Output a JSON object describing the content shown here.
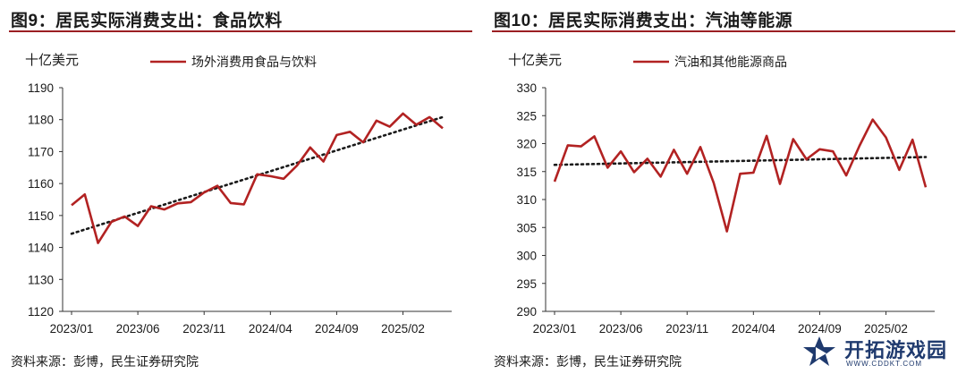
{
  "charts": [
    {
      "fig_title": "图9：居民实际消费支出：食品饮料",
      "source": "资料来源：彭博，民生证券研究院",
      "chart_data": {
        "type": "line",
        "unit_label": "十亿美元",
        "legend": "场外消费用食品与饮料",
        "ylim": [
          1120,
          1190
        ],
        "yticks": [
          "1120",
          "1130",
          "1140",
          "1150",
          "1160",
          "1170",
          "1180",
          "1190"
        ],
        "xticks": [
          "2023/01",
          "2023/06",
          "2023/11",
          "2024/04",
          "2024/09",
          "2025/02"
        ],
        "series": [
          {
            "name": "场外消费用食品与饮料",
            "color": "#b22222",
            "values": [
              1153.2,
              1156.6,
              1141.4,
              1148.0,
              1149.7,
              1146.7,
              1152.9,
              1151.9,
              1153.8,
              1154.2,
              1157.2,
              1159.3,
              1153.9,
              1153.5,
              1162.9,
              1162.3,
              1161.5,
              1165.6,
              1171.3,
              1166.9,
              1175.2,
              1176.2,
              1172.9,
              1179.7,
              1177.8,
              1181.9,
              1178.4,
              1180.8,
              1177.3
            ]
          }
        ],
        "trend": {
          "style": "dotted",
          "color": "#1a1a1a",
          "start": 1144.3,
          "end": 1180.8
        }
      }
    },
    {
      "fig_title": "图10：居民实际消费支出：汽油等能源",
      "source": "资料来源：彭博，民生证券研究院",
      "chart_data": {
        "type": "line",
        "unit_label": "十亿美元",
        "legend": "汽油和其他能源商品",
        "ylim": [
          290,
          330
        ],
        "yticks": [
          "290",
          "295",
          "300",
          "305",
          "310",
          "315",
          "320",
          "325",
          "330"
        ],
        "xticks": [
          "2023/01",
          "2023/06",
          "2023/11",
          "2024/04",
          "2024/09",
          "2025/02"
        ],
        "series": [
          {
            "name": "汽油和其他能源商品",
            "color": "#b22222",
            "values": [
              313.2,
              319.7,
              319.5,
              321.3,
              315.7,
              318.6,
              314.9,
              317.3,
              314.1,
              318.9,
              314.6,
              319.4,
              313.0,
              304.3,
              314.6,
              314.8,
              321.4,
              312.8,
              320.8,
              317.2,
              319.0,
              318.6,
              314.3,
              319.6,
              324.3,
              321.1,
              315.3,
              320.7,
              312.2
            ]
          }
        ],
        "trend": {
          "style": "dotted",
          "color": "#1a1a1a",
          "start": 316.2,
          "end": 317.6
        }
      }
    }
  ],
  "watermark": {
    "name": "开拓游戏园",
    "url": "WWW.CDDKT.COM",
    "icon": "star-play-logo-icon"
  }
}
